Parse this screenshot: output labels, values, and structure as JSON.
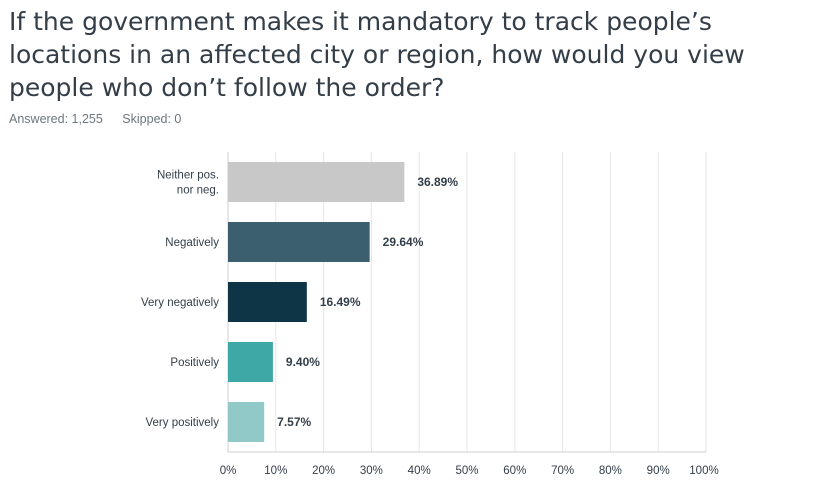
{
  "question": "If the government makes it mandatory to track people’s locations in an affected city or region, how would you view people who don’t follow the order?",
  "answered": "Answered: 1,255",
  "skipped": "Skipped: 0",
  "chart_data": {
    "type": "bar",
    "orientation": "horizontal",
    "categories": [
      [
        "Neither pos.",
        "nor neg."
      ],
      [
        "Negatively"
      ],
      [
        "Very negatively"
      ],
      [
        "Positively"
      ],
      [
        "Very positively"
      ]
    ],
    "values": [
      36.89,
      29.64,
      16.49,
      9.4,
      7.57
    ],
    "value_labels": [
      "36.89%",
      "29.64%",
      "16.49%",
      "9.40%",
      "7.57%"
    ],
    "colors": [
      "#c8c8c8",
      "#3b5f6e",
      "#0d3545",
      "#3da8a6",
      "#90c9c8"
    ],
    "xlim": [
      0,
      100
    ],
    "x_ticks": [
      "0%",
      "10%",
      "20%",
      "30%",
      "40%",
      "50%",
      "60%",
      "70%",
      "80%",
      "90%",
      "100%"
    ],
    "grid": true
  }
}
